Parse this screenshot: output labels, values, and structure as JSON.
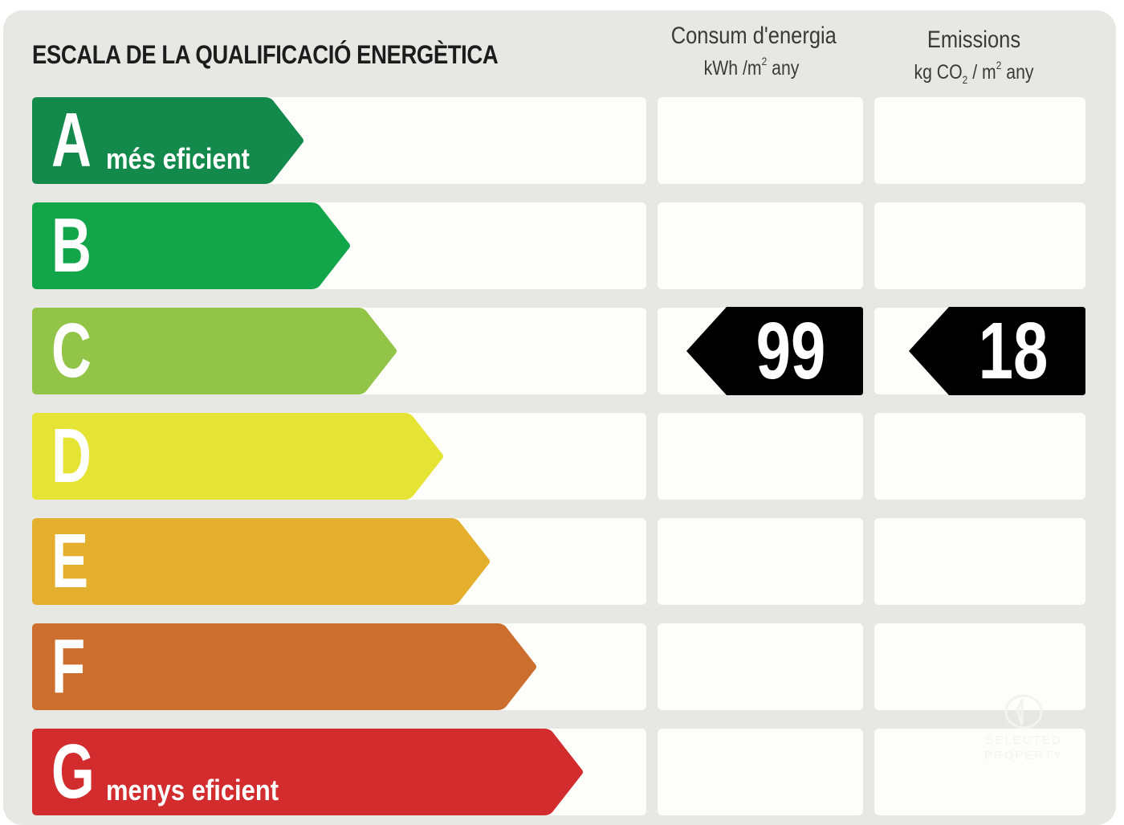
{
  "title": "ESCALA DE LA QUALIFICACIÓ ENERGÈTICA",
  "columns": {
    "consumption": {
      "line1": "Consum d'energia",
      "unit_a": "kWh /m",
      "unit_sup": "2",
      "unit_b": " any"
    },
    "emissions": {
      "line1": "Emissions",
      "unit_a": "kg CO",
      "unit_sub": "2",
      "unit_mid": " / m",
      "unit_sup": "2",
      "unit_b": " any"
    }
  },
  "ratings": [
    {
      "letter": "A",
      "sublabel": "més eficient",
      "color": "#138a4b"
    },
    {
      "letter": "B",
      "sublabel": "",
      "color": "#12a54a"
    },
    {
      "letter": "C",
      "sublabel": "",
      "color": "#92c447"
    },
    {
      "letter": "D",
      "sublabel": "",
      "color": "#e5e333"
    },
    {
      "letter": "E",
      "sublabel": "",
      "color": "#e3af2c"
    },
    {
      "letter": "F",
      "sublabel": "",
      "color": "#cc6f2e"
    },
    {
      "letter": "G",
      "sublabel": "menys eficient",
      "color": "#d22c2f"
    }
  ],
  "current": {
    "rating": "C",
    "consumption_value": "99",
    "emissions_value": "18",
    "tag_color": "#000000"
  },
  "watermark": {
    "line1": "SELECTED",
    "line2": "PROPERTY",
    "icon": "house-logo-icon"
  }
}
